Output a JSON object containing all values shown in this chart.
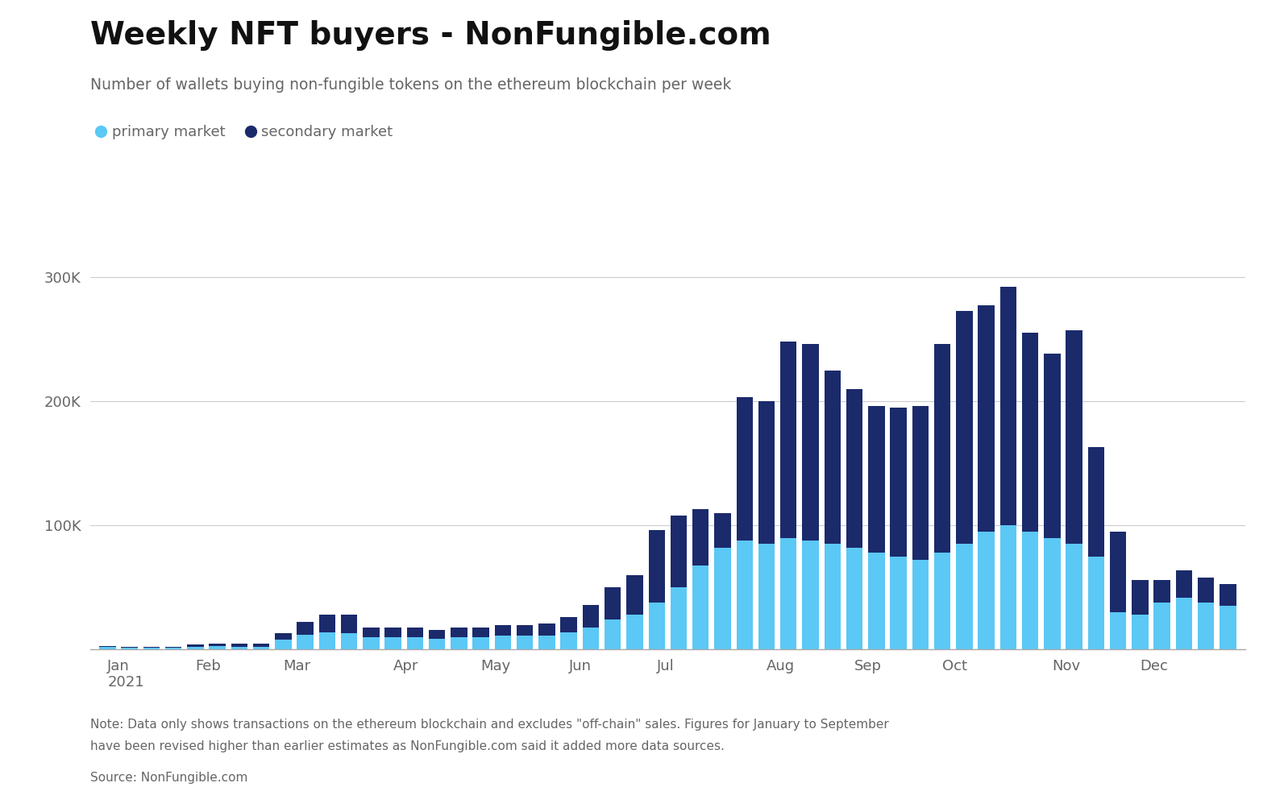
{
  "title": "Weekly NFT buyers - NonFungible.com",
  "subtitle": "Number of wallets buying non-fungible tokens on the ethereum blockchain per week",
  "primary_color": "#5BC8F5",
  "secondary_color": "#1B2A6B",
  "background_color": "#ffffff",
  "note_line1": "Note: Data only shows transactions on the ethereum blockchain and excludes \"off-chain\" sales. Figures for January to September",
  "note_line2": "have been revised higher than earlier estimates as NonFungible.com said it added more data sources.",
  "source_text": "Source: NonFungible.com",
  "ylim": [
    0,
    340000
  ],
  "yticks": [
    0,
    100000,
    200000,
    300000
  ],
  "ytick_labels": [
    "",
    "100K",
    "200K",
    "300K"
  ],
  "month_labels": [
    "Jan\n2021",
    "Feb",
    "Mar",
    "Apr",
    "May",
    "Jun",
    "Jul",
    "Aug",
    "Sep",
    "Oct",
    "Nov",
    "Dec"
  ],
  "weekly_primary": [
    2000,
    1500,
    1500,
    1500,
    2500,
    3000,
    2500,
    2500,
    8000,
    12000,
    14000,
    13000,
    10000,
    10000,
    10000,
    9000,
    10000,
    10000,
    11000,
    11000,
    11000,
    14000,
    18000,
    24000,
    28000,
    38000,
    50000,
    68000,
    82000,
    88000,
    85000,
    90000,
    88000,
    85000,
    82000,
    78000,
    75000,
    72000,
    78000,
    85000,
    95000,
    100000,
    95000,
    90000,
    85000,
    75000,
    30000,
    28000,
    38000,
    42000,
    38000,
    35000
  ],
  "weekly_secondary": [
    1000,
    1000,
    1000,
    1000,
    1500,
    2000,
    2000,
    2000,
    5000,
    10000,
    14000,
    15000,
    8000,
    8000,
    8000,
    7000,
    8000,
    8000,
    9000,
    9000,
    10000,
    12000,
    18000,
    26000,
    32000,
    58000,
    58000,
    45000,
    28000,
    115000,
    115000,
    158000,
    158000,
    140000,
    128000,
    118000,
    120000,
    124000,
    168000,
    188000,
    182000,
    192000,
    160000,
    148000,
    172000,
    88000,
    65000,
    28000,
    18000,
    22000,
    20000,
    18000
  ],
  "month_starts": [
    0,
    4,
    8,
    13,
    17,
    21,
    25,
    30,
    34,
    38,
    43,
    47
  ]
}
